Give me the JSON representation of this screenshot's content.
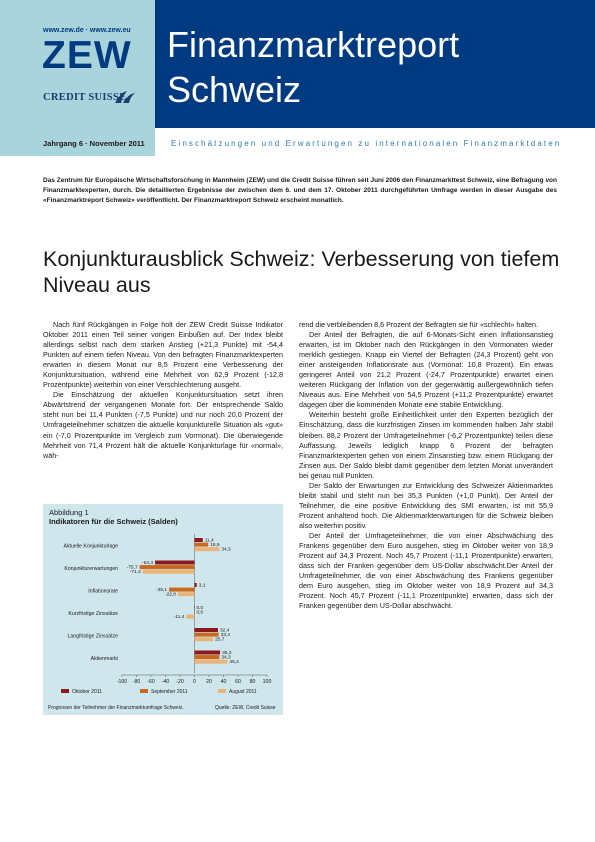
{
  "header": {
    "urls": "www.zew.de · www.zew.eu",
    "zew_logo": "ZEW",
    "cs_logo": "CREDIT SUISSE",
    "title_line1": "Finanzmarktreport",
    "title_line2": "Schweiz",
    "issue": "Jahrgang 6 · November 2011",
    "tagline": "Einschätzungen und Erwartungen zu internationalen Finanzmarktdaten"
  },
  "colors": {
    "navy": "#003a80",
    "light_blue": "#a9d4dc",
    "chart_bg": "#cfe6ec",
    "oct": "#8b1a1f",
    "sep": "#c8691e",
    "aug": "#e8b47a"
  },
  "intro": "Das Zentrum für Europäische Wirtschaftsforschung in Mannheim (ZEW) und die Credit Suisse führen seit Juni 2006 den Finanzmarkttest Schweiz, eine Befragung von Finanzmarktexperten, durch. Die detaillierten Ergebnisse der zwischen dem 6. und dem 17. Oktober 2011 durchgeführten Umfrage werden in dieser Ausgabe des «Finanzmarktreport Schweiz» veröffentlicht. Der Finanzmarktreport Schweiz erscheint monatlich.",
  "headline": "Konjunkturausblick Schweiz: Verbesserung von tiefem Niveau aus",
  "left_paragraphs": [
    "Nach fünf Rückgängen in Folge holt der ZEW Credit Suisse Indikator Oktober 2011 einen Teil seiner vorigen Einbußen auf. Der Index bleibt allerdings selbst nach dem starken Anstieg (+21,3 Punkte) mit -54,4 Punkten auf einem tiefen Niveau. Von den befragten Finanzmarktexperten erwarten in diesem Monat nur 8,5 Prozent eine Verbesserung der Konjunktursituation, während eine Mehrheit von 62,9 Prozent (-12,8 Prozentpunkte) weiterhin von einer Verschlechterung ausgeht.",
    "Die Einschätzung der aktuellen Konjunktursituation setzt ihren Abwärtstrend der vergangenen Monate fort. Der entsprechende Saldo steht nun bei 11,4 Punkten (-7,5 Punkte) und nur noch 20,0 Prozent der Umfrageteilnehmer schätzen die aktuelle konjunkturelle Situation als «gut» ein (-7,0 Prozentpunkte im Vergleich zum Vormonat). Die überwiegende Mehrheit von 71,4 Prozent hält die aktuelle Konjunkturlage für «normal», wäh-"
  ],
  "right_paragraphs": [
    "rend die verbleibenden 8,6 Prozent der Befragten sie für «schlecht» halten.",
    "Der Anteil der Befragten, die auf 6-Monats-Sicht einen Inflationsanstieg erwarten, ist im Oktober nach den Rückgängen in den Vormonaten wieder merklich gestiegen. Knapp ein Viertel der Befragten (24,3 Prozent) geht von einer ansteigenden Inflationsrate aus (Vormonat: 10,8 Prozent). Ein etwas geringerer Anteil von 21,2 Prozent (-24,7 Prozentpunkte) erwartet einen weiteren Rückgang der Inflation von der gegenwärtig außergewöhnlich tiefen Niveaus aus. Eine Mehrheit von 54,5 Prozent (+11,2 Prozentpunkte) erwartet dagegen über die kommenden Monate eine stabile Entwicklung.",
    "Weiterhin besteht große Einheitlichkeit unter den Experten bezüglich der Einschätzung, dass die kurzfristigen Zinsen im kommenden halben Jahr stabil bleiben. 88,2 Prozent der Umfrageteilnehmer (-6,2 Prozentpunkte) teilen diese Auffassung. Jeweils lediglich knapp 6 Prozent der befragten Finanzmarktexperten gehen von einem Zinsanstieg bzw. einem Rückgang der Zinsen aus. Der Saldo bleibt damit gegenüber dem letzten Monat unverändert bei genau null Punkten.",
    "Der Saldo der Erwartungen zur Entwicklung des Schweizer Aktienmarktes bleibt stabil und steht nun bei 35,3 Punkten (+1,0 Punkt). Der Anteil der Teilnehmer, die eine positive Entwicklung des SMI erwarten, ist mit 55,9 Prozent anhaltend hoch. Die Aktienmarkterwartungen für die Schweiz bleiben also weiterhin positiv.",
    "Der Anteil der Umfrageteilnehmer, die von einer Abschwächung des Frankens gegenüber dem Euro ausgehen, stieg im Oktober weiter von 18,9 Prozent auf 34,3 Prozent. Noch 45,7 Prozent (-11,1 Prozentpunkte) erwarten, dass sich der Franken gegenüber dem US-Dollar abschwächt.Der Anteil der Umfrageteilnehmer, die von einer Abschwächung des Frankens gegenüber dem Euro ausgehen, stieg im Oktober weiter von 18,9 Prozent auf 34,3 Prozent. Noch 45,7 Prozent (-11,1 Prozentpunkte) erwarten, dass sich der Franken gegenüber dem US-Dollar abschwächt."
  ],
  "chart": {
    "title_line1": "Abbildung 1",
    "title_line2": "Indikatoren für die Schweiz (Salden)",
    "note": "Prognosen der Teilnehmer der Finanzmarktumfrage Schweiz.",
    "source": "Quelle: ZEW, Credit Suisse"
  },
  "chart_data": {
    "type": "bar",
    "orientation": "horizontal",
    "title": "Indikatoren für die Schweiz (Salden)",
    "categories": [
      "Aktuelle Konjunkturlage",
      "Konjunkturerwartungen",
      "Inflationsrate",
      "Kurzfristige Zinssätze",
      "Langfristige Zinssätze",
      "Aktienmarkt"
    ],
    "series": [
      {
        "name": "Oktober 2011",
        "values": [
          11.4,
          -54.4,
          3.1,
          0.0,
          32.4,
          35.3
        ]
      },
      {
        "name": "September 2011",
        "values": [
          18.9,
          -75.7,
          -35.1,
          0.0,
          33.4,
          34.3
        ]
      },
      {
        "name": "August 2011",
        "values": [
          34.3,
          -71.4,
          -22.8,
          -11.4,
          25.7,
          45.4
        ]
      }
    ],
    "value_labels": [
      [
        "11,4",
        "-54,4",
        "3,1",
        "0,0",
        "32,4",
        "35,3"
      ],
      [
        "18,9",
        "-75,7",
        "-35,1",
        "0,0",
        "33,4",
        "34,3"
      ],
      [
        "34,3",
        "-71,4",
        "-22,8",
        "-11,4",
        "25,7",
        "45,4"
      ]
    ],
    "xlim": [
      -100,
      100
    ],
    "xticks": [
      -100,
      -80,
      -60,
      -40,
      -20,
      0,
      20,
      40,
      60,
      80,
      100
    ],
    "legend_position": "bottom"
  }
}
